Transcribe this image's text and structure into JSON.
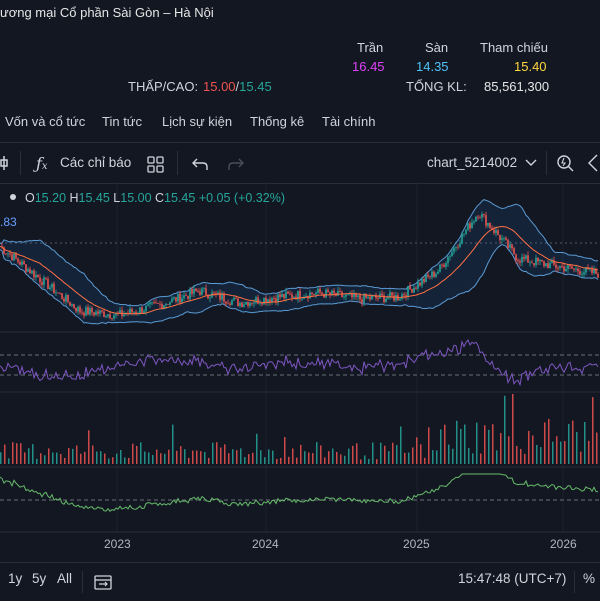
{
  "header": {
    "company_name": "ương mại Cổ phần Sài Gòn – Hà Nội",
    "tran_label": "Trần",
    "san_label": "Sàn",
    "thamchieu_label": "Tham chiếu",
    "tran_value": "16.45",
    "san_value": "14.35",
    "thamchieu_value": "15.40",
    "thapcao_label": "THẤP/CAO:",
    "low_value": "15.00",
    "high_value": "15.45",
    "slash": "/",
    "tongkl_label": "TỔNG KL:",
    "tongkl_value": "85,561,300"
  },
  "tabs": [
    "Vốn và cổ tức",
    "Tin tức",
    "Lịch sự kiện",
    "Thống kê",
    "Tài chính"
  ],
  "toolbar": {
    "indicators_label": "Các chỉ báo",
    "chart_name": "chart_5214002"
  },
  "legend": {
    "o_key": "O",
    "o_val": "15.20",
    "h_key": "H",
    "h_val": "15.45",
    "l_key": "L",
    "l_val": "15.00",
    "c_key": "C",
    "c_val": "15.45",
    "change": "+0.05 (+0.32%)",
    "left_value": ".83"
  },
  "axis_years": [
    "2023",
    "2024",
    "2025",
    "2026"
  ],
  "bottom": {
    "r1y": "1y",
    "r5y": "5y",
    "rall": "All",
    "time": "15:47:48 (UTC+7)",
    "pct": "%"
  },
  "colors": {
    "ceiling": "#e040fb",
    "floor": "#4fc3f7",
    "reference": "#ffd740",
    "up": "#26a69a",
    "down": "#ef5350",
    "low": "#ef5350"
  },
  "chart_data": {
    "type": "line",
    "x": [
      "2022-06",
      "2022-09",
      "2022-12",
      "2023-03",
      "2023-06",
      "2023-09",
      "2023-12",
      "2024-03",
      "2024-06",
      "2024-09",
      "2024-12",
      "2025-03",
      "2025-06",
      "2025-09",
      "2025-12",
      "2026-02"
    ],
    "series": [
      {
        "values": [
          16.8,
          15.2,
          13.6,
          13.4,
          13.9,
          14.6,
          14.0,
          14.3,
          14.5,
          14.2,
          14.3,
          15.6,
          18.5,
          16.2,
          15.8,
          15.45
        ]
      }
    ],
    "x_ticks": [
      "2023",
      "2024",
      "2025",
      "2026"
    ]
  }
}
